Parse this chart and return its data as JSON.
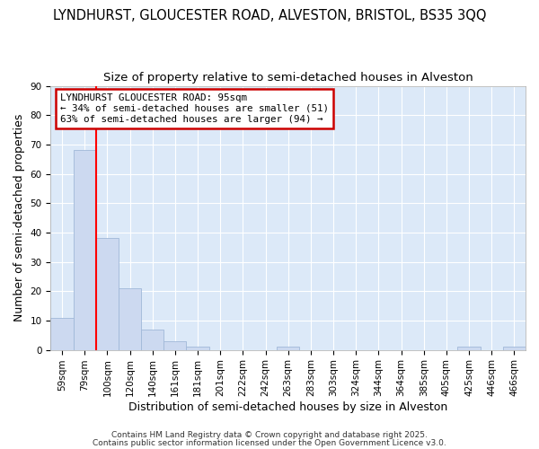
{
  "title": "LYNDHURST, GLOUCESTER ROAD, ALVESTON, BRISTOL, BS35 3QQ",
  "subtitle": "Size of property relative to semi-detached houses in Alveston",
  "xlabel": "Distribution of semi-detached houses by size in Alveston",
  "ylabel": "Number of semi-detached properties",
  "bar_labels": [
    "59sqm",
    "79sqm",
    "100sqm",
    "120sqm",
    "140sqm",
    "161sqm",
    "181sqm",
    "201sqm",
    "222sqm",
    "242sqm",
    "263sqm",
    "283sqm",
    "303sqm",
    "324sqm",
    "344sqm",
    "364sqm",
    "385sqm",
    "405sqm",
    "425sqm",
    "446sqm",
    "466sqm"
  ],
  "bar_values": [
    11,
    68,
    38,
    21,
    7,
    3,
    1,
    0,
    0,
    0,
    1,
    0,
    0,
    0,
    0,
    0,
    0,
    0,
    1,
    0,
    1
  ],
  "bar_color": "#ccd9f0",
  "bar_edge_color": "#a0b8d8",
  "red_line_x": 1.5,
  "annotation_title": "LYNDHURST GLOUCESTER ROAD: 95sqm",
  "annotation_line2": "← 34% of semi-detached houses are smaller (51)",
  "annotation_line3": "63% of semi-detached houses are larger (94) →",
  "annotation_box_color": "#ffffff",
  "annotation_box_edge": "#cc0000",
  "ylim": [
    0,
    90
  ],
  "yticks": [
    0,
    10,
    20,
    30,
    40,
    50,
    60,
    70,
    80,
    90
  ],
  "fig_bg_color": "#ffffff",
  "plot_bg_color": "#dce9f8",
  "footer_line1": "Contains HM Land Registry data © Crown copyright and database right 2025.",
  "footer_line2": "Contains public sector information licensed under the Open Government Licence v3.0.",
  "grid_color": "#ffffff",
  "title_fontsize": 10.5,
  "subtitle_fontsize": 9.5,
  "axis_label_fontsize": 9,
  "tick_fontsize": 7.5,
  "footer_fontsize": 6.5
}
